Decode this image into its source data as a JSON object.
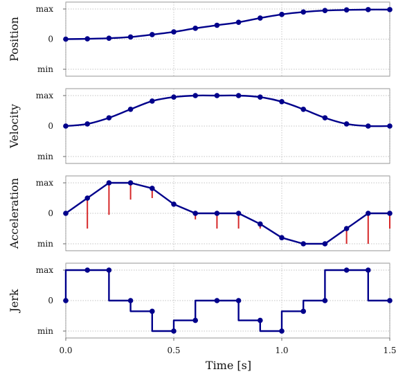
{
  "chart_data": [
    {
      "type": "line",
      "ylabel": "Position",
      "ytick_labels": [
        "max",
        "0",
        "min"
      ],
      "ylim": [
        -1,
        1
      ],
      "series": [
        {
          "x": [
            0,
            0.1,
            0.2,
            0.3,
            0.4,
            0.5,
            0.6,
            0.7,
            0.8,
            0.9,
            1.0,
            1.1,
            1.2,
            1.3,
            1.4,
            1.5
          ],
          "y": [
            0,
            0.01,
            0.03,
            0.07,
            0.15,
            0.24,
            0.36,
            0.46,
            0.56,
            0.7,
            0.82,
            0.9,
            0.95,
            0.97,
            0.98,
            0.98
          ]
        }
      ]
    },
    {
      "type": "line",
      "ylabel": "Velocity",
      "ytick_labels": [
        "max",
        "0",
        "min"
      ],
      "ylim": [
        -1,
        1
      ],
      "series": [
        {
          "x": [
            0,
            0.1,
            0.2,
            0.3,
            0.4,
            0.5,
            0.6,
            0.7,
            0.8,
            0.9,
            1.0,
            1.1,
            1.2,
            1.3,
            1.4,
            1.5
          ],
          "y": [
            0,
            0.07,
            0.27,
            0.55,
            0.82,
            0.95,
            1.0,
            1.0,
            1.0,
            0.95,
            0.8,
            0.55,
            0.27,
            0.07,
            0,
            0
          ]
        }
      ]
    },
    {
      "type": "line",
      "ylabel": "Acceleration",
      "ytick_labels": [
        "max",
        "0",
        "min"
      ],
      "ylim": [
        -1,
        1
      ],
      "series": [
        {
          "x": [
            0,
            0.1,
            0.2,
            0.3,
            0.4,
            0.5,
            0.6,
            0.7,
            0.8,
            0.9,
            1.0,
            1.1,
            1.2,
            1.3,
            1.4,
            1.5
          ],
          "y": [
            0,
            0.5,
            1.0,
            1.0,
            0.82,
            0.3,
            0,
            0,
            0,
            -0.35,
            -0.8,
            -1.0,
            -1.0,
            -0.5,
            0,
            0
          ]
        }
      ],
      "error_stems": [
        {
          "x": 0.1,
          "from": 0.5,
          "to": -0.5
        },
        {
          "x": 0.2,
          "from": 1.0,
          "to": -0.05
        },
        {
          "x": 0.3,
          "from": 1.0,
          "to": 0.45
        },
        {
          "x": 0.4,
          "from": 0.82,
          "to": 0.5
        },
        {
          "x": 0.6,
          "from": 0,
          "to": -0.2
        },
        {
          "x": 0.7,
          "from": 0,
          "to": -0.5
        },
        {
          "x": 0.8,
          "from": 0,
          "to": -0.5
        },
        {
          "x": 0.9,
          "from": -0.35,
          "to": -0.5
        },
        {
          "x": 1.3,
          "from": -0.5,
          "to": -1.0
        },
        {
          "x": 1.4,
          "from": 0,
          "to": -1.0
        },
        {
          "x": 1.5,
          "from": 0,
          "to": -0.5
        }
      ]
    },
    {
      "type": "line",
      "step": true,
      "ylabel": "Jerk",
      "ytick_labels": [
        "max",
        "0",
        "min"
      ],
      "ylim": [
        -1,
        1
      ],
      "series": [
        {
          "points": [
            [
              0,
              0
            ],
            [
              0,
              1
            ],
            [
              0.2,
              1
            ],
            [
              0.2,
              0
            ],
            [
              0.3,
              0
            ],
            [
              0.3,
              -0.35
            ],
            [
              0.4,
              -0.35
            ],
            [
              0.4,
              -1
            ],
            [
              0.5,
              -1
            ],
            [
              0.5,
              -0.65
            ],
            [
              0.6,
              -0.65
            ],
            [
              0.6,
              0
            ],
            [
              0.8,
              0
            ],
            [
              0.8,
              -0.65
            ],
            [
              0.9,
              -0.65
            ],
            [
              0.9,
              -1
            ],
            [
              1.0,
              -1
            ],
            [
              1.0,
              -0.35
            ],
            [
              1.1,
              -0.35
            ],
            [
              1.1,
              0
            ],
            [
              1.2,
              0
            ],
            [
              1.2,
              1
            ],
            [
              1.4,
              1
            ],
            [
              1.4,
              0
            ],
            [
              1.5,
              0
            ]
          ],
          "markers": [
            [
              0,
              0
            ],
            [
              0.1,
              1
            ],
            [
              0.2,
              1
            ],
            [
              0.3,
              0
            ],
            [
              0.4,
              -0.35
            ],
            [
              0.5,
              -1
            ],
            [
              0.6,
              -0.65
            ],
            [
              0.7,
              0
            ],
            [
              0.8,
              0
            ],
            [
              0.9,
              -0.65
            ],
            [
              1.0,
              -1
            ],
            [
              1.1,
              -0.35
            ],
            [
              1.2,
              0
            ],
            [
              1.3,
              1
            ],
            [
              1.4,
              1
            ],
            [
              1.5,
              0
            ]
          ]
        }
      ]
    }
  ],
  "x_axis": {
    "label": "Time [s]",
    "xlim": [
      0,
      1.5
    ],
    "ticks": [
      0,
      0.5,
      1.0,
      1.5
    ],
    "tick_labels": [
      "0.0",
      "0.5",
      "1.0",
      "1.5"
    ],
    "grid": true
  },
  "colors": {
    "trace": "#00008b",
    "error": "#d62728",
    "grid": "#b0b0b0"
  }
}
